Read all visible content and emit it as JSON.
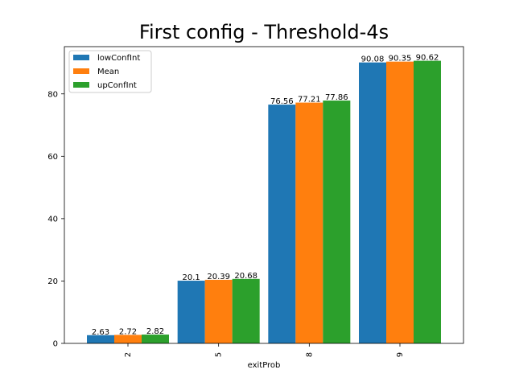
{
  "chart_data": {
    "type": "bar",
    "title": "First config - Threshold-4s",
    "xlabel": "exitProb",
    "ylabel": "",
    "categories": [
      "2",
      "5",
      "8",
      "9"
    ],
    "series": [
      {
        "name": "lowConfInt",
        "color": "#1f77b4",
        "values": [
          2.63,
          20.1,
          76.56,
          90.08
        ]
      },
      {
        "name": "Mean",
        "color": "#ff7f0e",
        "values": [
          2.72,
          20.39,
          77.21,
          90.35
        ]
      },
      {
        "name": "upConfInt",
        "color": "#2ca02c",
        "values": [
          2.82,
          20.68,
          77.86,
          90.62
        ]
      }
    ],
    "ylim": [
      0,
      95.15
    ],
    "yticks": [
      0,
      20,
      40,
      60,
      80
    ],
    "legend_position": "top-left",
    "grid": false
  }
}
